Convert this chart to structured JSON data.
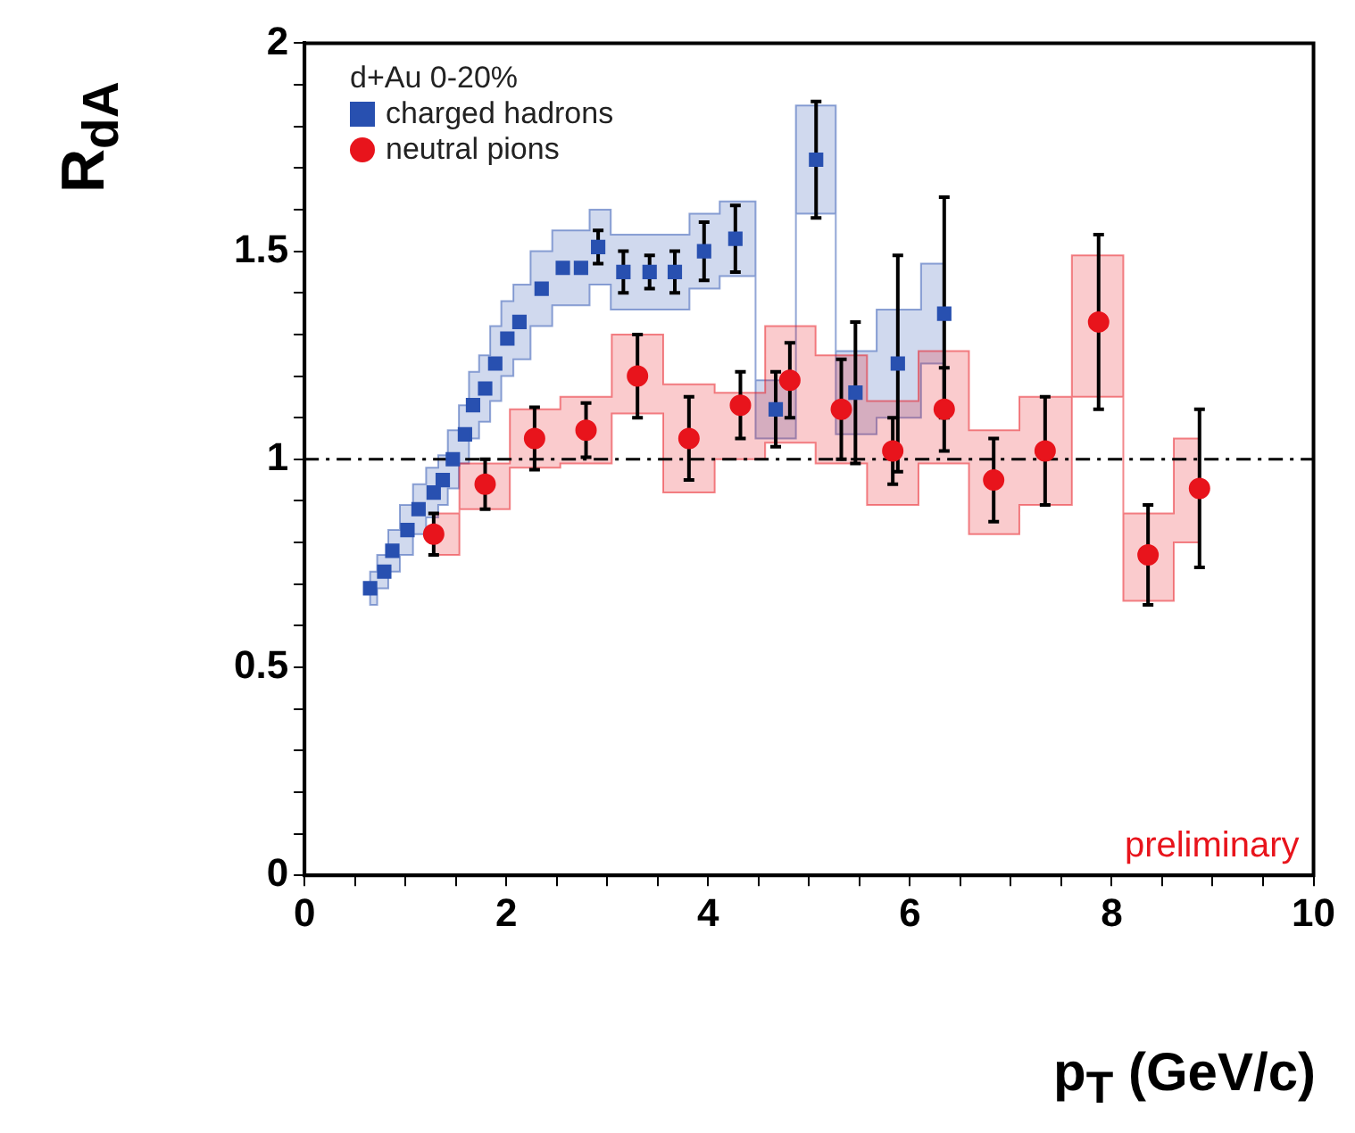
{
  "chart_data": {
    "type": "scatter",
    "xlabel": "p$_{T}$ (GeV/c)",
    "ylabel": "R$_{dA}$",
    "legend_title": "d+Au 0-20%",
    "legend": "top left",
    "xlim": [
      0,
      10
    ],
    "ylim": [
      0,
      2
    ],
    "xticks": [
      0,
      {
        "value": 0.5,
        "label": null
      },
      {
        "value": 1,
        "label": null
      },
      {
        "value": 1.5,
        "label": null
      },
      2,
      {
        "value": 2.5,
        "label": null
      },
      {
        "value": 3,
        "label": null
      },
      {
        "value": 3.5,
        "label": null
      },
      4,
      {
        "value": 4.5,
        "label": null
      },
      {
        "value": 5,
        "label": null
      },
      {
        "value": 5.5,
        "label": null
      },
      6,
      {
        "value": 6.5,
        "label": null
      },
      {
        "value": 7,
        "label": null
      },
      {
        "value": 7.5,
        "label": null
      },
      8,
      {
        "value": 8.5,
        "label": null
      },
      {
        "value": 9,
        "label": null
      },
      {
        "value": 9.5,
        "label": null
      },
      10
    ],
    "yticks": [
      0,
      {
        "value": 0.1,
        "label": null
      },
      {
        "value": 0.2,
        "label": null
      },
      {
        "value": 0.3,
        "label": null
      },
      {
        "value": 0.4,
        "label": null
      },
      0.5,
      {
        "value": 0.6,
        "label": null
      },
      {
        "value": 0.7,
        "label": null
      },
      {
        "value": 0.8,
        "label": null
      },
      {
        "value": 0.9,
        "label": null
      },
      1,
      {
        "value": 1.1,
        "label": null
      },
      {
        "value": 1.2,
        "label": null
      },
      {
        "value": 1.3,
        "label": null
      },
      {
        "value": 1.4,
        "label": null
      },
      1.5,
      {
        "value": 1.6,
        "label": null
      },
      {
        "value": 1.7,
        "label": null
      },
      {
        "value": 1.8,
        "label": null
      },
      {
        "value": 1.9,
        "label": null
      },
      2
    ],
    "grid": false,
    "ref_lines": [
      {
        "axis": "y",
        "value": 1,
        "color": "#000000",
        "line_style": "dashed"
      }
    ],
    "annotations": [
      "preliminary"
    ],
    "series": [
      {
        "name": "charged hadrons",
        "color": "#2850b0",
        "marker": "square",
        "x": [
          0.65,
          0.79,
          0.87,
          1.02,
          1.13,
          1.28,
          1.37,
          1.47,
          1.59,
          1.67,
          1.79,
          1.89,
          2.01,
          2.13,
          2.35,
          2.56,
          2.74,
          2.91,
          3.16,
          3.42,
          3.67,
          3.96,
          4.27,
          4.67,
          5.07,
          5.46,
          5.88,
          6.34
        ],
        "values": [
          0.69,
          0.73,
          0.78,
          0.83,
          0.88,
          0.92,
          0.95,
          1.0,
          1.06,
          1.13,
          1.17,
          1.23,
          1.29,
          1.33,
          1.41,
          1.46,
          1.46,
          1.51,
          1.45,
          1.45,
          1.45,
          1.5,
          1.53,
          1.12,
          1.72,
          1.16,
          1.23,
          1.35
        ],
        "errors": [
          null,
          null,
          null,
          null,
          null,
          null,
          null,
          null,
          null,
          null,
          null,
          null,
          null,
          null,
          null,
          null,
          null,
          0.04,
          0.05,
          0.04,
          0.05,
          0.07,
          0.08,
          0.09,
          0.14,
          0.17,
          0.26,
          [
            1.1,
            1.63
          ]
        ],
        "lower": [
          0.65,
          0.69,
          0.73,
          0.77,
          0.82,
          0.86,
          0.89,
          0.93,
          0.99,
          1.05,
          1.09,
          1.14,
          1.2,
          1.24,
          1.32,
          1.37,
          1.37,
          1.42,
          1.36,
          1.36,
          1.36,
          1.41,
          1.44,
          1.05,
          1.59,
          1.06,
          1.1,
          1.23
        ],
        "upper": [
          0.73,
          0.77,
          0.83,
          0.89,
          0.94,
          0.98,
          1.01,
          1.07,
          1.13,
          1.21,
          1.25,
          1.32,
          1.38,
          1.42,
          1.5,
          1.55,
          1.55,
          1.6,
          1.54,
          1.54,
          1.54,
          1.59,
          1.62,
          1.19,
          1.85,
          1.26,
          1.36,
          1.47
        ]
      },
      {
        "name": "neutral pions",
        "color": "#e8141c",
        "marker": "circle",
        "x": [
          1.28,
          1.79,
          2.28,
          2.79,
          3.3,
          3.81,
          4.32,
          4.81,
          5.32,
          5.83,
          6.34,
          6.83,
          7.34,
          7.87,
          8.36,
          8.87
        ],
        "values": [
          0.82,
          0.94,
          1.05,
          1.07,
          1.2,
          1.05,
          1.13,
          1.19,
          1.12,
          1.02,
          1.12,
          0.95,
          1.02,
          1.33,
          0.77,
          0.93
        ],
        "errors": [
          0.05,
          0.06,
          0.075,
          0.065,
          0.1,
          0.1,
          0.08,
          0.09,
          0.12,
          0.08,
          0.1,
          0.1,
          0.13,
          0.21,
          0.12,
          0.19
        ],
        "lower": [
          0.77,
          0.88,
          0.98,
          0.99,
          1.11,
          0.92,
          1.0,
          1.04,
          0.99,
          0.89,
          0.99,
          0.82,
          0.89,
          1.15,
          0.66,
          0.8
        ],
        "upper": [
          0.87,
          0.99,
          1.12,
          1.15,
          1.3,
          1.18,
          1.16,
          1.32,
          1.25,
          1.14,
          1.26,
          1.07,
          1.15,
          1.49,
          0.87,
          1.05
        ]
      }
    ]
  }
}
